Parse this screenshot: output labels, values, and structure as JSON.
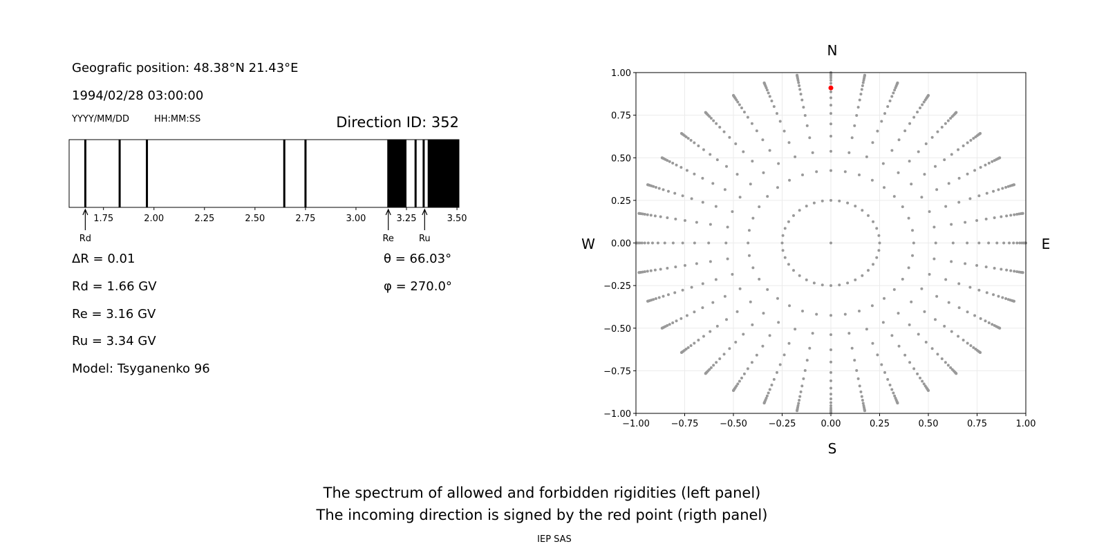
{
  "left_panel": {
    "position": "Geografic position: 48.38°N 21.43°E",
    "datetime": "1994/02/28 03:00:00",
    "date_format_label": "YYYY/MM/DD",
    "time_format_label": "HH:MM:SS",
    "direction_id": "Direction ID: 352",
    "delta_r": "ΔR = 0.01",
    "rd": "Rd = 1.66 GV",
    "re": "Re = 3.16 GV",
    "ru": "Ru = 3.34 GV",
    "model": "Model: Tsyganenko 96",
    "theta": "θ = 66.03°",
    "phi": "φ = 270.0°"
  },
  "caption": {
    "line1": "The spectrum of allowed and forbidden rigidities (left panel)",
    "line2": "The incoming direction is signed by the red point (rigth panel)",
    "credit": "IEP SAS"
  },
  "chart_data": [
    {
      "type": "bar",
      "description_kind": "rigidity spectrum",
      "xlim": [
        1.58,
        3.51
      ],
      "xticks": [
        "1.75",
        "2.00",
        "2.25",
        "2.50",
        "2.75",
        "3.00",
        "3.25",
        "3.50"
      ],
      "xtick_values": [
        1.75,
        2.0,
        2.25,
        2.5,
        2.75,
        3.0,
        3.25,
        3.5
      ],
      "forbidden_bands": [
        [
          1.655,
          1.665
        ],
        [
          1.825,
          1.835
        ],
        [
          1.96,
          1.97
        ],
        [
          2.64,
          2.65
        ],
        [
          2.745,
          2.755
        ],
        [
          3.155,
          3.25
        ],
        [
          3.29,
          3.3
        ],
        [
          3.33,
          3.34
        ],
        [
          3.355,
          3.51
        ]
      ],
      "allowed_color": "#ffffff",
      "forbidden_color": "#000000",
      "markers": [
        {
          "label": "Rd",
          "value": 1.66
        },
        {
          "label": "Re",
          "value": 3.16
        },
        {
          "label": "Ru",
          "value": 3.34
        }
      ]
    },
    {
      "type": "scatter",
      "xlim": [
        -1,
        1
      ],
      "ylim": [
        -1,
        1
      ],
      "xticks": [
        "−1.00",
        "−0.75",
        "−0.50",
        "−0.25",
        "0.00",
        "0.25",
        "0.50",
        "0.75",
        "1.00"
      ],
      "yticks": [
        "−1.00",
        "−0.75",
        "−0.50",
        "−0.25",
        "0.00",
        "0.25",
        "0.50",
        "0.75",
        "1.00"
      ],
      "tick_values": [
        -1,
        -0.75,
        -0.5,
        -0.25,
        0,
        0.25,
        0.5,
        0.75,
        1
      ],
      "grid": true,
      "compass": {
        "north": "N",
        "south": "S",
        "west": "W",
        "east": "E"
      },
      "grid_points": {
        "azimuths_deg_step": 10,
        "radii": [
          0.25,
          0.425,
          0.538,
          0.627,
          0.699,
          0.76,
          0.809,
          0.852,
          0.887,
          0.915,
          0.937,
          0.955,
          0.969,
          0.98,
          0.989,
          0.995,
          0.999,
          1.0
        ],
        "center_point": [
          0,
          0
        ],
        "color": "#999999"
      },
      "highlight_point": {
        "x": 0.0,
        "y": 0.91,
        "color": "#ff0000"
      }
    }
  ]
}
